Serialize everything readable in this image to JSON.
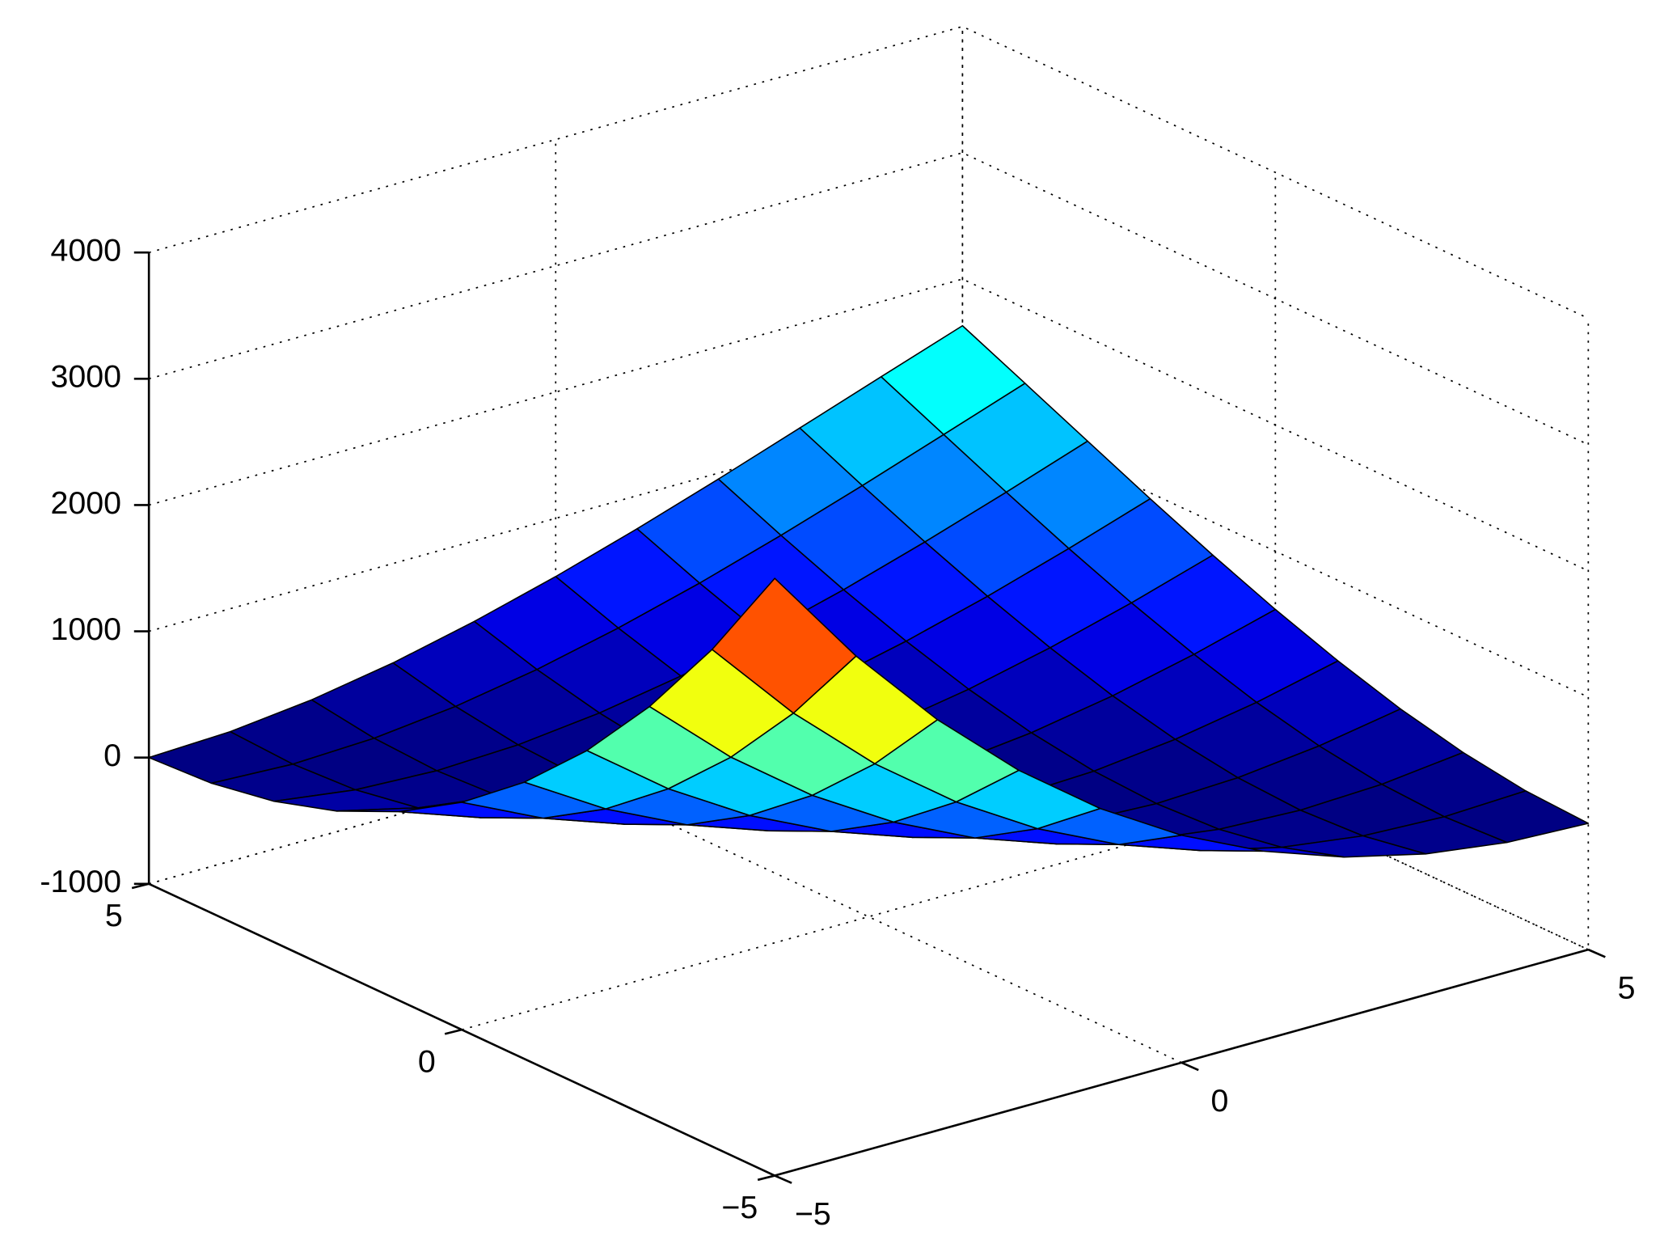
{
  "chart_data": {
    "type": "surface",
    "colormap": "jet",
    "grid": true,
    "x": [
      -5,
      -4,
      -3,
      -2,
      -1,
      0,
      1,
      2,
      3,
      4,
      5
    ],
    "y": [
      -5,
      -4,
      -3,
      -2,
      -1,
      0,
      1,
      2,
      3,
      4,
      5
    ],
    "z": [
      [
        3730,
        2936,
        2253,
        1673,
        1192,
        801,
        496,
        270,
        116,
        28,
        0
      ],
      [
        2936,
        2253,
        1673,
        1192,
        801,
        496,
        270,
        116,
        28,
        0,
        26
      ],
      [
        2253,
        1673,
        1192,
        801,
        496,
        270,
        116,
        28,
        0,
        26,
        99
      ],
      [
        1673,
        1192,
        801,
        496,
        270,
        116,
        28,
        0,
        26,
        99,
        213
      ],
      [
        1192,
        801,
        496,
        270,
        116,
        28,
        0,
        26,
        99,
        213,
        362
      ],
      [
        801,
        496,
        270,
        116,
        28,
        0,
        26,
        99,
        213,
        362,
        539
      ],
      [
        496,
        270,
        116,
        28,
        0,
        26,
        99,
        213,
        362,
        539,
        738
      ],
      [
        270,
        116,
        28,
        0,
        26,
        99,
        213,
        362,
        539,
        738,
        953
      ],
      [
        116,
        28,
        0,
        26,
        99,
        213,
        362,
        539,
        738,
        953,
        1178
      ],
      [
        28,
        0,
        26,
        99,
        213,
        362,
        539,
        738,
        953,
        1178,
        1405
      ],
      [
        0,
        26,
        99,
        213,
        362,
        539,
        738,
        953,
        1178,
        1405,
        1630
      ]
    ],
    "xlim": [
      -5,
      5
    ],
    "ylim": [
      -5,
      5
    ],
    "zlim": [
      -1000,
      4000
    ],
    "xticks": [
      {
        "value": -5,
        "label": "−5"
      },
      0,
      5
    ],
    "yticks": [
      {
        "value": -5,
        "label": "−5"
      },
      0,
      5
    ],
    "zticks": [
      -1000,
      0,
      1000,
      2000,
      3000,
      4000
    ]
  }
}
